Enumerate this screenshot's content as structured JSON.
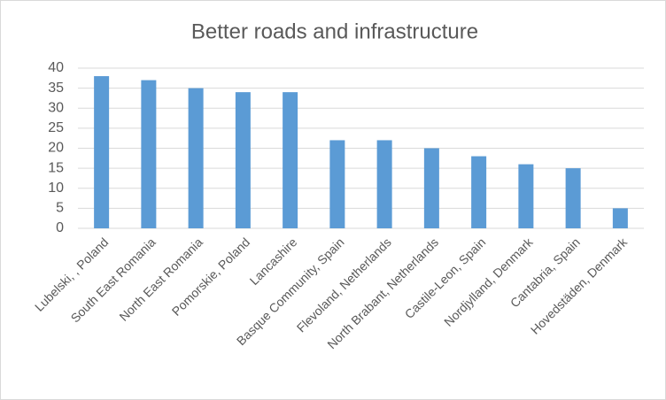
{
  "chart_data": {
    "type": "bar",
    "title": "Better roads and infrastructure",
    "categories": [
      "Lubelski, , Poland",
      "South East Romania",
      "North East Romania",
      "Pomorskie, Poland",
      "Lancashire",
      "Basque Community, Spain",
      "Flevoland, Netherlands",
      "North Brabant, Netherlands",
      "Castile-Leon, Spain",
      "Nordjylland, Denmark",
      "Cantabria, Spain",
      "Hovedstäden, Denmark"
    ],
    "values": [
      38,
      37,
      35,
      34,
      34,
      22,
      22,
      20,
      18,
      16,
      15,
      5
    ],
    "color": "#5b9bd5",
    "ylim": [
      0,
      40
    ],
    "yticks": [
      0,
      5,
      10,
      15,
      20,
      25,
      30,
      35,
      40
    ],
    "grid": true
  }
}
